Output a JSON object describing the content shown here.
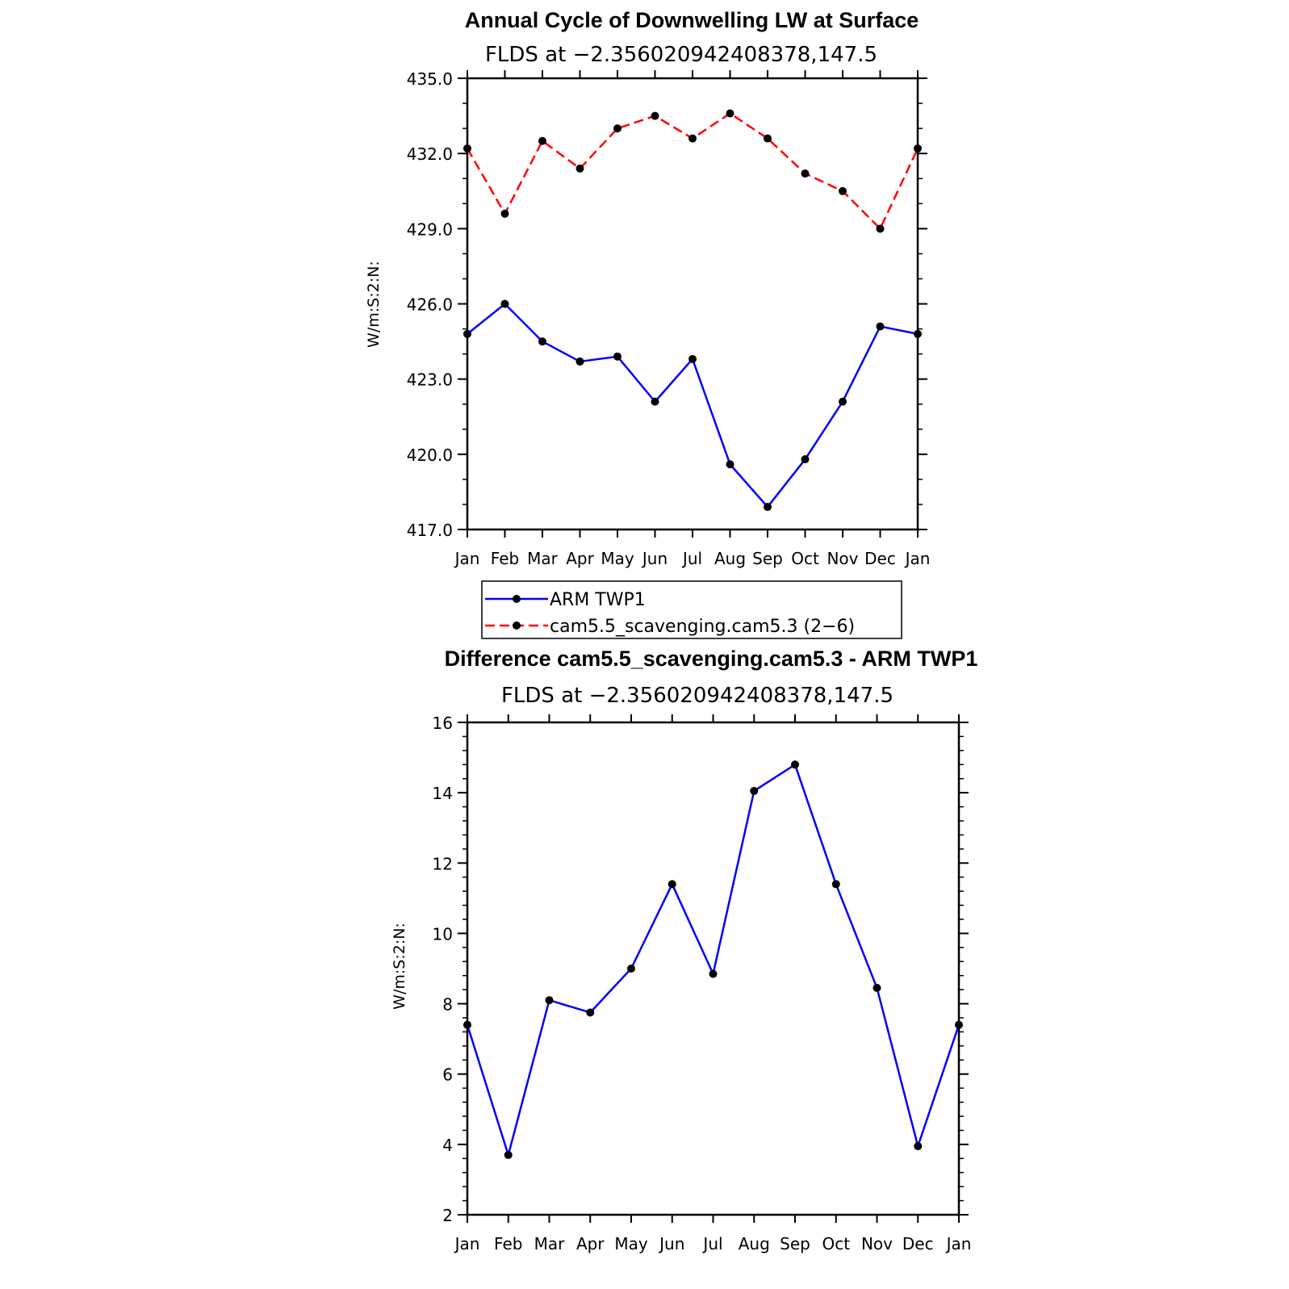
{
  "chart_data": [
    {
      "type": "line",
      "title": "Annual Cycle of Downwelling LW at Surface",
      "subtitle": "FLDS at −2.356020942408378,147.5",
      "ylabel": "W/m:S:2:N:",
      "xlabel": "",
      "categories": [
        "Jan",
        "Feb",
        "Mar",
        "Apr",
        "May",
        "Jun",
        "Jul",
        "Aug",
        "Sep",
        "Oct",
        "Nov",
        "Dec",
        "Jan"
      ],
      "ylim": [
        417,
        435
      ],
      "yticks": [
        "417.0",
        "420.0",
        "423.0",
        "426.0",
        "429.0",
        "432.0",
        "435.0"
      ],
      "grid": false,
      "legend_position": "bottom",
      "series": [
        {
          "name": "ARM TWP1",
          "color": "#0000ff",
          "dash": "solid",
          "values": [
            424.8,
            426.0,
            424.5,
            423.7,
            423.9,
            422.1,
            423.8,
            419.6,
            417.9,
            419.8,
            422.1,
            425.1,
            424.8
          ]
        },
        {
          "name": "cam5.5_scavenging.cam5.3 (2−6)",
          "color": "#ff0000",
          "dash": "dashed",
          "values": [
            432.2,
            429.6,
            432.5,
            431.4,
            433.0,
            433.5,
            432.6,
            433.6,
            432.6,
            431.2,
            430.5,
            429.0,
            432.2
          ]
        }
      ]
    },
    {
      "type": "line",
      "title": "Difference cam5.5_scavenging.cam5.3 - ARM TWP1",
      "subtitle": "FLDS at −2.356020942408378,147.5",
      "ylabel": "W/m:S:2:N:",
      "xlabel": "",
      "categories": [
        "Jan",
        "Feb",
        "Mar",
        "Apr",
        "May",
        "Jun",
        "Jul",
        "Aug",
        "Sep",
        "Oct",
        "Nov",
        "Dec",
        "Jan"
      ],
      "ylim": [
        2,
        16
      ],
      "yticks": [
        "2",
        "4",
        "6",
        "8",
        "10",
        "12",
        "14",
        "16"
      ],
      "grid": false,
      "series": [
        {
          "color": "#0000ff",
          "dash": "solid",
          "values": [
            7.4,
            3.7,
            8.1,
            7.75,
            9.0,
            11.4,
            8.85,
            14.05,
            14.8,
            11.4,
            8.45,
            3.95,
            7.4
          ]
        }
      ]
    }
  ]
}
